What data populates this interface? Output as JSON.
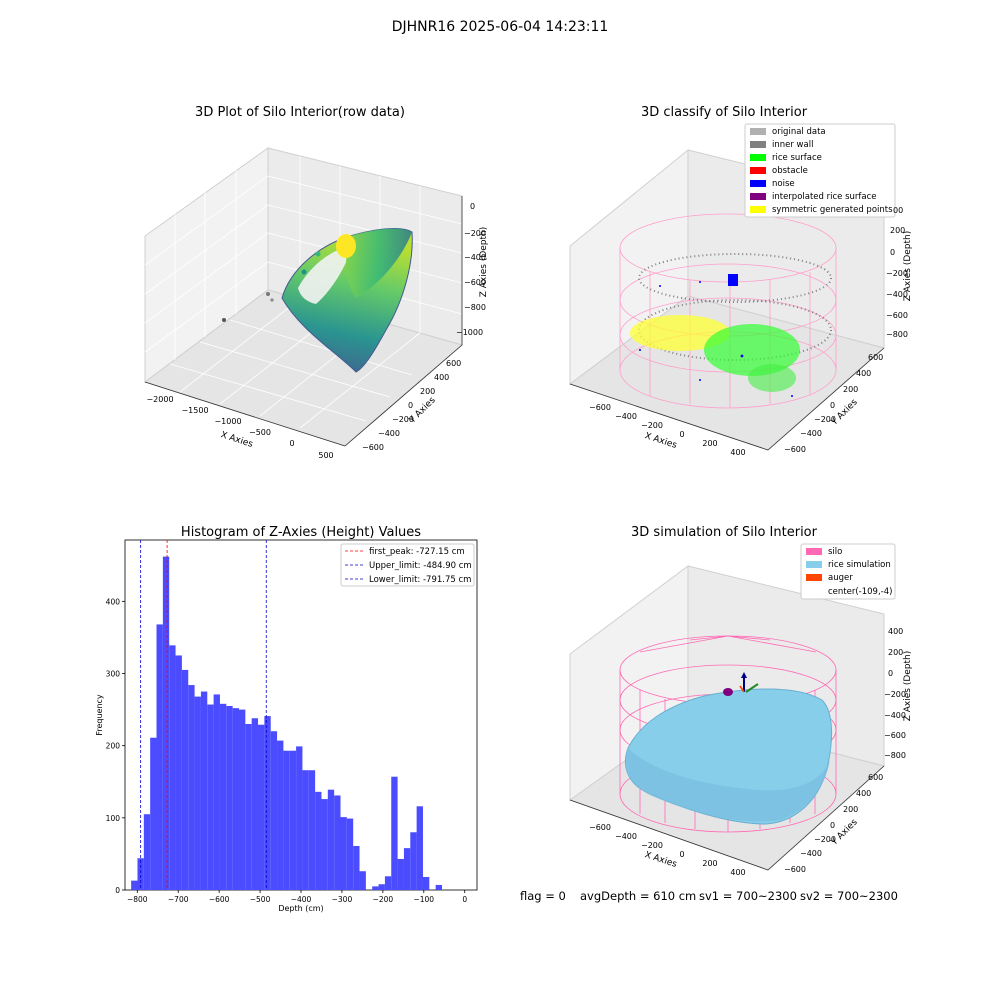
{
  "figure": {
    "suptitle": "DJHNR16 2025-06-04 14:23:11",
    "footer": {
      "flag": "flag = 0",
      "avg_depth": "avgDepth = 610 cm",
      "sv1": "sv1 = 700~2300",
      "sv2": "sv2 = 700~2300"
    }
  },
  "colors": {
    "viridis_dark": "#3b528b",
    "viridis_mid": "#21918c",
    "viridis_light": "#5ec962",
    "viridis_yellow": "#fde725",
    "silo_pink": "#ff69b4",
    "rice_sim_blue": "#87ceeb",
    "hist_blue": "#4b4bff",
    "first_peak_red": "#ff0000",
    "limit_blue": "#0000cc"
  },
  "chart_data": [
    {
      "type": "scatter",
      "projection": "3d",
      "title": "3D Plot of Silo Interior(row data)",
      "xlabel": "X Axies",
      "ylabel": "Y Axies",
      "zlabel": "Z Axies (Depth)",
      "xticks": [
        "−2000",
        "−1500",
        "−1000",
        "−500",
        "0",
        "500"
      ],
      "yticks": [
        "600",
        "400",
        "200",
        "0",
        "−200",
        "−400",
        "−600"
      ],
      "zticks": [
        "0",
        "−200",
        "−400",
        "−600",
        "−800",
        "−1000"
      ],
      "colormap": "viridis",
      "description_points": "rice surface point cloud colored by depth"
    },
    {
      "type": "scatter",
      "projection": "3d",
      "title": "3D classify of Silo Interior",
      "xlabel": "X Axies",
      "ylabel": "Y Axies",
      "zlabel": "Z Axies (Depth)",
      "xticks": [
        "−600",
        "−400",
        "−200",
        "0",
        "200",
        "400"
      ],
      "yticks": [
        "600",
        "400",
        "200",
        "0",
        "−200",
        "−400",
        "−600"
      ],
      "zticks": [
        "200",
        "0",
        "−200",
        "−400",
        "−600",
        "−800"
      ],
      "zticks_partial": "00",
      "legend": {
        "position": "top-right",
        "entries": [
          {
            "label": "original data",
            "color": "#b0b0b0"
          },
          {
            "label": "inner wall",
            "color": "#808080"
          },
          {
            "label": "rice surface",
            "color": "#00ff00"
          },
          {
            "label": "obstacle",
            "color": "#ff0000"
          },
          {
            "label": "noise",
            "color": "#0000ff"
          },
          {
            "label": "interpolated rice surface",
            "color": "#800080"
          },
          {
            "label": "symmetric generated points",
            "color": "#ffff00"
          }
        ]
      }
    },
    {
      "type": "bar",
      "title": "Histogram of Z-Axies (Height) Values",
      "xlabel": "Depth (cm)",
      "ylabel": "Frequency",
      "xlim": [
        -830,
        30
      ],
      "ylim": [
        0,
        485
      ],
      "xticks": [
        -800,
        -700,
        -600,
        -500,
        -400,
        -300,
        -200,
        -100,
        0
      ],
      "yticks": [
        0,
        100,
        200,
        300,
        400
      ],
      "bin_start": -815,
      "bin_width": 15.5,
      "values": [
        13,
        44,
        105,
        211,
        368,
        462,
        339,
        325,
        305,
        284,
        268,
        275,
        257,
        271,
        258,
        255,
        252,
        250,
        230,
        238,
        229,
        241,
        220,
        207,
        193,
        193,
        199,
        166,
        166,
        136,
        126,
        139,
        131,
        101,
        99,
        61,
        26,
        0,
        5,
        8,
        19,
        157,
        43,
        58,
        80,
        116,
        18,
        0,
        7
      ],
      "vlines": [
        {
          "x": -727.15,
          "label": "first_peak: -727.15 cm",
          "color": "#ff0000"
        },
        {
          "x": -484.9,
          "label": "Upper_limit: -484.90 cm",
          "color": "#0000cc"
        },
        {
          "x": -791.75,
          "label": "Lower_limit: -791.75 cm",
          "color": "#0000cc"
        }
      ],
      "legend_position": "top-right"
    },
    {
      "type": "surface",
      "projection": "3d",
      "title": "3D simulation of Silo Interior",
      "xlabel": "X Axies",
      "ylabel": "Y Axies",
      "zlabel": "Z Axies (Depth)",
      "xticks": [
        "−600",
        "−400",
        "−200",
        "0",
        "200",
        "400"
      ],
      "yticks": [
        "600",
        "400",
        "200",
        "0",
        "−200",
        "−400",
        "−600"
      ],
      "zticks": [
        "400",
        "200",
        "0",
        "−200",
        "−400",
        "−600",
        "−800"
      ],
      "legend": {
        "position": "top-right",
        "entries": [
          {
            "label": "silo",
            "color": "#ff69b4"
          },
          {
            "label": "rice simulation",
            "color": "#87ceeb"
          },
          {
            "label": "auger",
            "color": "#ff4500"
          },
          {
            "label": "center(-109,-4)",
            "color": ""
          }
        ]
      }
    }
  ]
}
